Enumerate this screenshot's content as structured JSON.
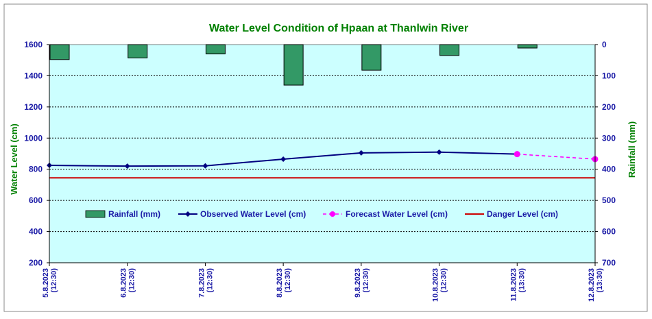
{
  "chart_data": {
    "type": "line",
    "title": "Water Level Condition of Hpaan at Thanlwin River",
    "ylabel": "Water Level (cm)",
    "y2label": "Rainfall (mm)",
    "ylim": [
      200,
      1600
    ],
    "yticks": [
      "200",
      "400",
      "600",
      "800",
      "1000",
      "1200",
      "1400",
      "1600"
    ],
    "y2lim": [
      0,
      700
    ],
    "y2ticks": [
      "0",
      "100",
      "200",
      "300",
      "400",
      "500",
      "600",
      "700"
    ],
    "y2_inverted": true,
    "categories": [
      {
        "date": "5.8.2023",
        "time": "(12:30)"
      },
      {
        "date": "6.8.2023",
        "time": "(12:30)"
      },
      {
        "date": "7.8.2023",
        "time": "(12:30)"
      },
      {
        "date": "8.8.2023",
        "time": "(12:30)"
      },
      {
        "date": "9.8.2023",
        "time": "(12:30)"
      },
      {
        "date": "10.8.2023",
        "time": "(12:30)"
      },
      {
        "date": "11.8.2023",
        "time": "(13:30)"
      },
      {
        "date": "12.8.2023",
        "time": "(13:30)"
      }
    ],
    "series": [
      {
        "name": "Rainfall (mm)",
        "kind": "bar",
        "axis": "right",
        "color": "#339966",
        "values": [
          48,
          43,
          30,
          130,
          82,
          35,
          11,
          null
        ]
      },
      {
        "name": "Observed Water Level (cm)",
        "kind": "line",
        "axis": "left",
        "color": "#000080",
        "values": [
          825,
          820,
          822,
          865,
          905,
          910,
          897,
          null
        ]
      },
      {
        "name": "Forecast Water Level (cm)",
        "kind": "dashed-line",
        "axis": "left",
        "color": "#ff00ff",
        "values": [
          null,
          null,
          null,
          null,
          null,
          null,
          897,
          865
        ]
      },
      {
        "name": "Danger Level (cm)",
        "kind": "constant",
        "axis": "left",
        "color": "#cc0000",
        "value": 745
      }
    ],
    "grid": true,
    "legend_position": "middle",
    "plot_background": "#ccffff",
    "title_color": "#008000",
    "tick_color": "#1a1aa6"
  }
}
